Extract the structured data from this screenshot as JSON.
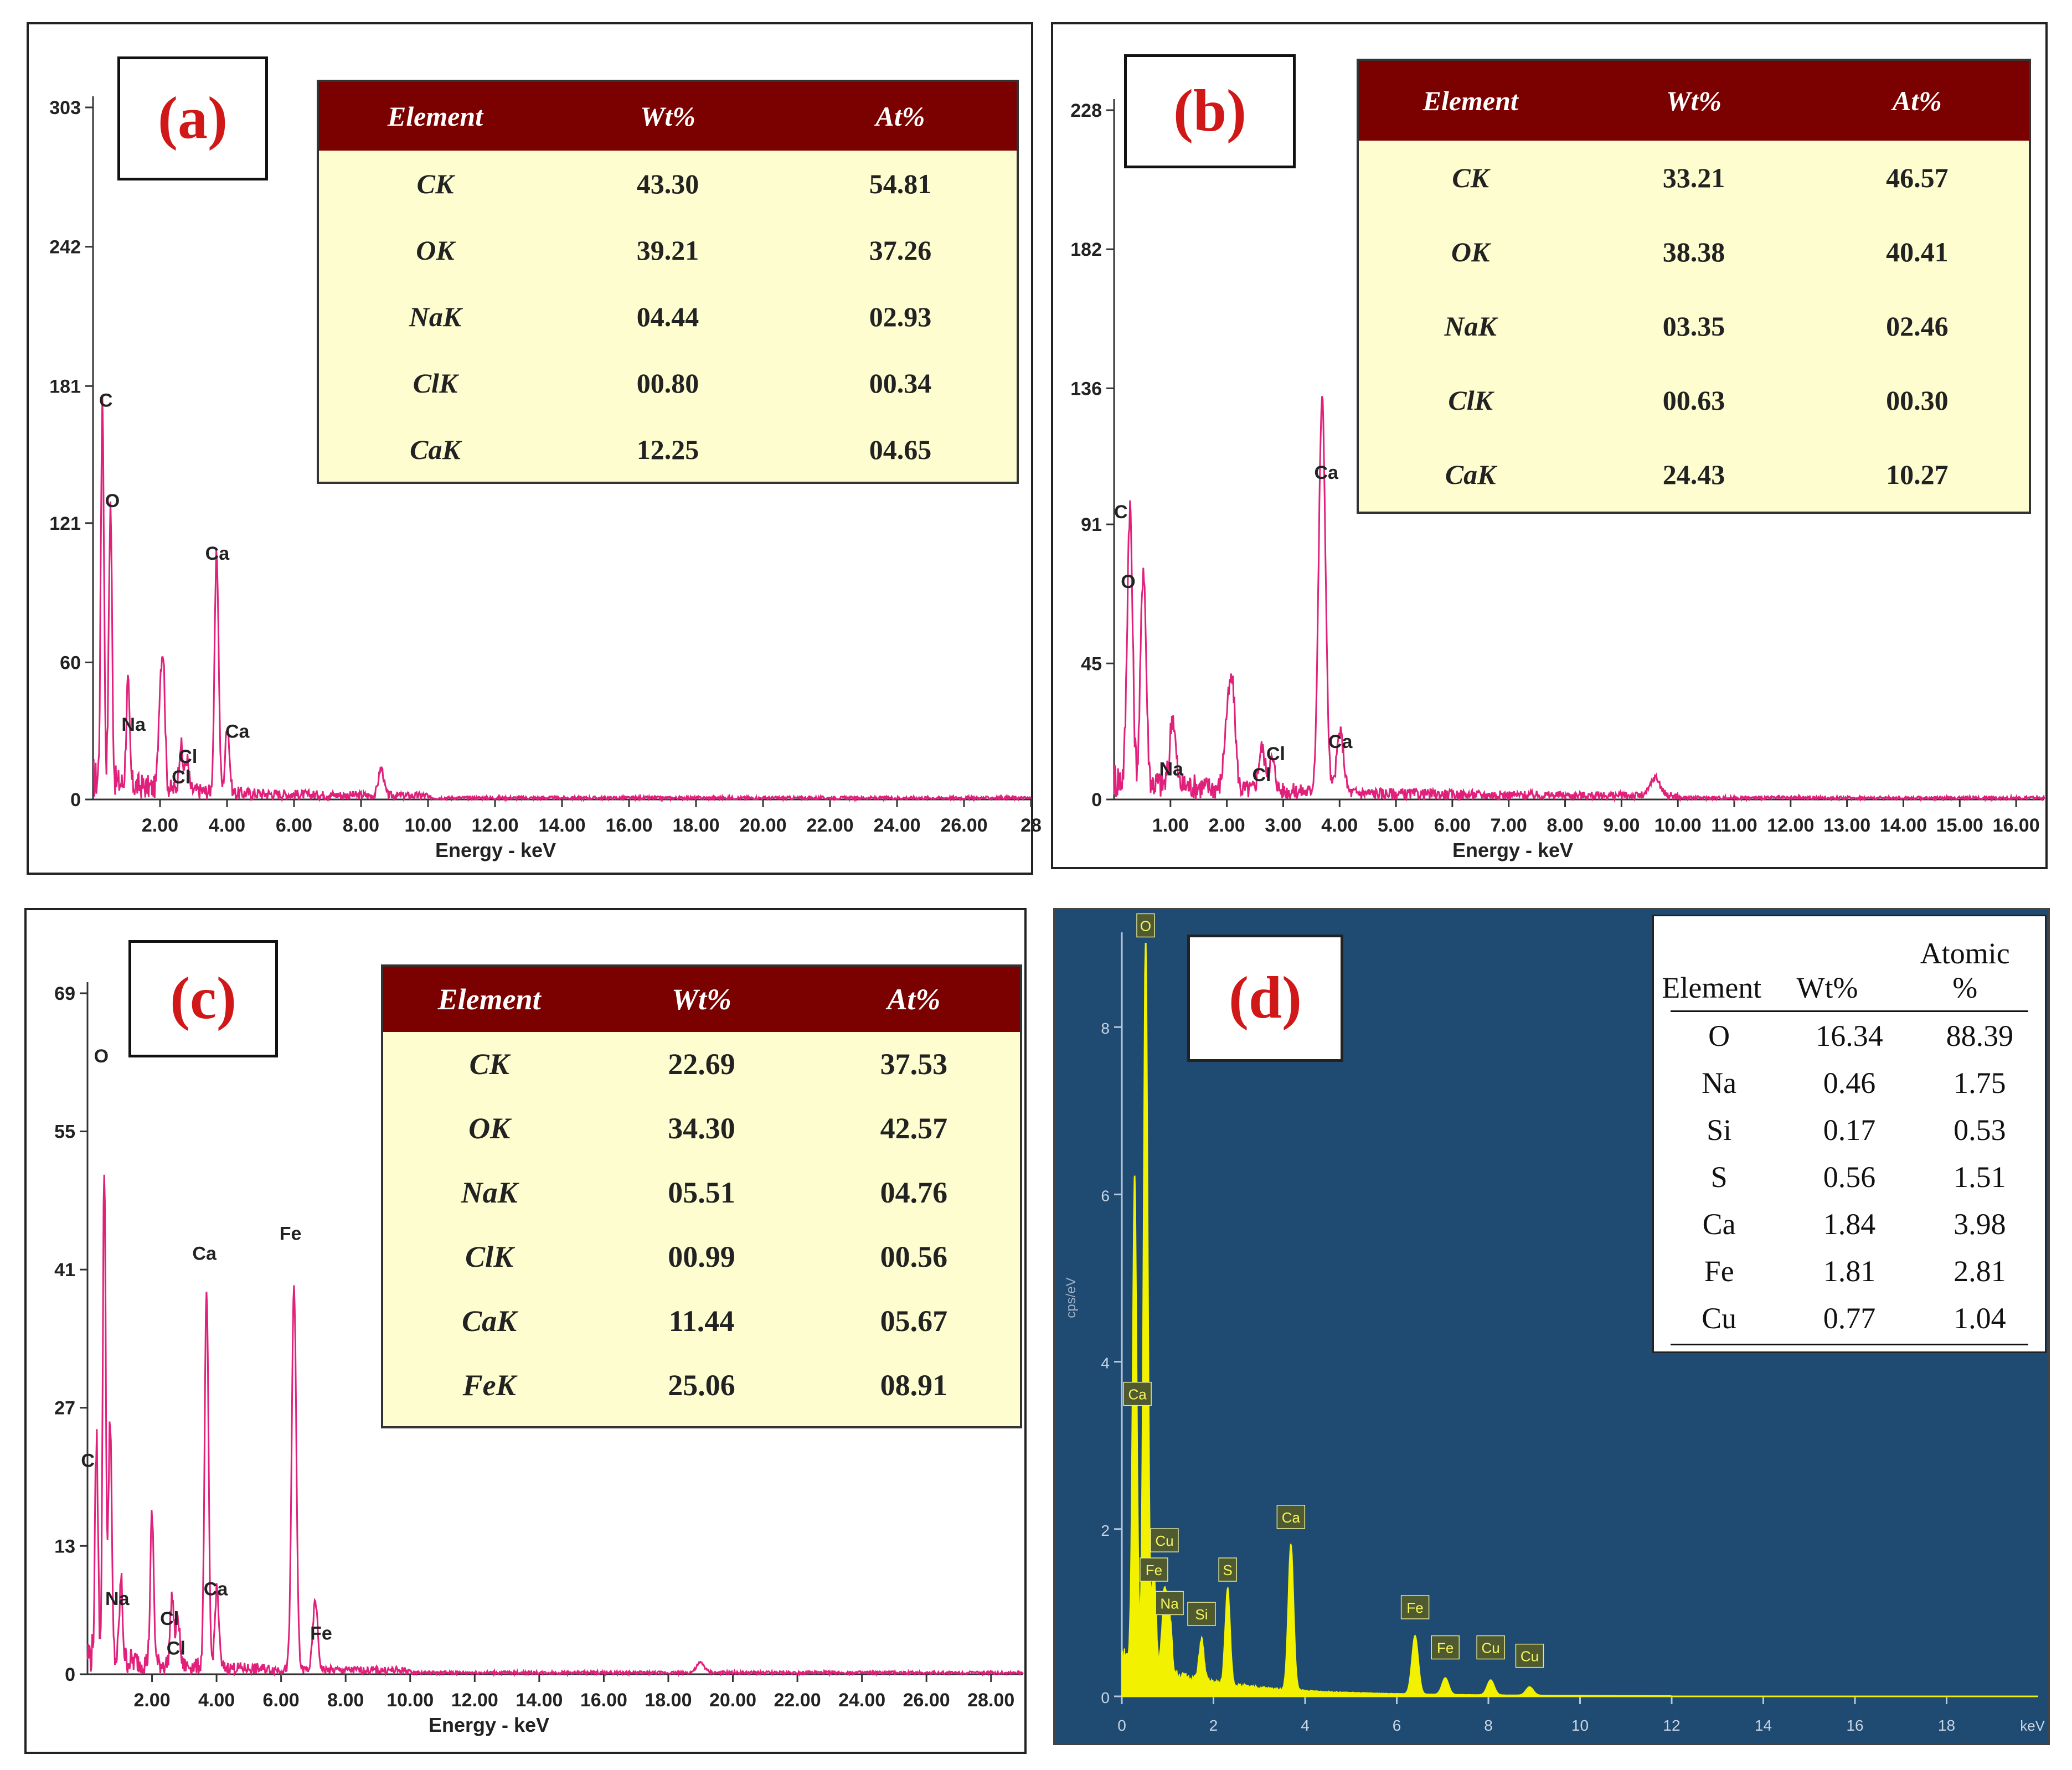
{
  "panels": {
    "a": {
      "label": "(a)",
      "table": {
        "headers": [
          "Element",
          "Wt%",
          "At%"
        ],
        "rows": [
          [
            "CK",
            "43.30",
            "54.81"
          ],
          [
            "OK",
            "39.21",
            "37.26"
          ],
          [
            "NaK",
            "04.44",
            "02.93"
          ],
          [
            "ClK",
            "00.80",
            "00.34"
          ],
          [
            "CaK",
            "12.25",
            "04.65"
          ]
        ]
      }
    },
    "b": {
      "label": "(b)",
      "table": {
        "headers": [
          "Element",
          "Wt%",
          "At%"
        ],
        "rows": [
          [
            "CK",
            "33.21",
            "46.57"
          ],
          [
            "OK",
            "38.38",
            "40.41"
          ],
          [
            "NaK",
            "03.35",
            "02.46"
          ],
          [
            "ClK",
            "00.63",
            "00.30"
          ],
          [
            "CaK",
            "24.43",
            "10.27"
          ]
        ]
      }
    },
    "c": {
      "label": "(c)",
      "table": {
        "headers": [
          "Element",
          "Wt%",
          "At%"
        ],
        "rows": [
          [
            "CK",
            "22.69",
            "37.53"
          ],
          [
            "OK",
            "34.30",
            "42.57"
          ],
          [
            "NaK",
            "05.51",
            "04.76"
          ],
          [
            "ClK",
            "00.99",
            "00.56"
          ],
          [
            "CaK",
            "11.44",
            "05.67"
          ],
          [
            "FeK",
            "25.06",
            "08.91"
          ]
        ]
      }
    },
    "d": {
      "label": "(d)",
      "table": {
        "headers": [
          "Element",
          "Wt%",
          "Atomic %"
        ],
        "rows": [
          [
            "O",
            "16.34",
            "88.39"
          ],
          [
            "Na",
            "0.46",
            "1.75"
          ],
          [
            "Si",
            "0.17",
            "0.53"
          ],
          [
            "S",
            "0.56",
            "1.51"
          ],
          [
            "Ca",
            "1.84",
            "3.98"
          ],
          [
            "Fe",
            "1.81",
            "2.81"
          ],
          [
            "Cu",
            "0.77",
            "1.04"
          ]
        ]
      }
    }
  },
  "chart_data": [
    {
      "id": "a",
      "type": "line",
      "xlabel": "Energy - keV",
      "ylabel": "",
      "xlim": [
        0,
        28
      ],
      "ylim": [
        0,
        303
      ],
      "yticks": [
        0,
        60,
        121,
        181,
        242,
        303
      ],
      "xticks": [
        2,
        4,
        6,
        8,
        10,
        12,
        14,
        16,
        18,
        20,
        22,
        24,
        26,
        28
      ],
      "xtick_labels": [
        "2.00",
        "4.00",
        "6.00",
        "8.00",
        "10.00",
        "12.00",
        "14.00",
        "16.00",
        "18.00",
        "20.00",
        "22.00",
        "24.00",
        "26.00",
        "28"
      ],
      "color": "#e0207a",
      "peaks": [
        [
          0.28,
          168
        ],
        [
          0.52,
          122
        ],
        [
          1.04,
          44
        ],
        [
          2.0,
          38
        ],
        [
          2.1,
          52
        ],
        [
          2.62,
          20
        ],
        [
          2.8,
          14
        ],
        [
          3.69,
          104
        ],
        [
          4.01,
          30
        ],
        [
          8.6,
          12
        ]
      ],
      "annotations": [
        {
          "text": "C",
          "x": 0.18,
          "y": 172
        },
        {
          "text": "O",
          "x": 0.36,
          "y": 128
        },
        {
          "text": "Na",
          "x": 0.85,
          "y": 30
        },
        {
          "text": "Cl",
          "x": 2.55,
          "y": 16
        },
        {
          "text": "Cl",
          "x": 2.35,
          "y": 7
        },
        {
          "text": "Ca",
          "x": 3.35,
          "y": 105
        },
        {
          "text": "Ca",
          "x": 3.95,
          "y": 27
        }
      ]
    },
    {
      "id": "b",
      "type": "line",
      "xlabel": "Energy - keV",
      "ylabel": "",
      "xlim": [
        0,
        16.5
      ],
      "ylim": [
        0,
        228
      ],
      "yticks": [
        0,
        45,
        91,
        136,
        182,
        228
      ],
      "xticks": [
        1,
        2,
        3,
        4,
        5,
        6,
        7,
        8,
        9,
        10,
        11,
        12,
        13,
        14,
        15,
        16
      ],
      "xtick_labels": [
        "1.00",
        "2.00",
        "3.00",
        "4.00",
        "5.00",
        "6.00",
        "7.00",
        "8.00",
        "9.00",
        "10.00",
        "11.00",
        "12.00",
        "13.00",
        "14.00",
        "15.00",
        "16.00"
      ],
      "color": "#e0207a",
      "peaks": [
        [
          0.28,
          91
        ],
        [
          0.52,
          72
        ],
        [
          1.04,
          23
        ],
        [
          2.0,
          20
        ],
        [
          2.1,
          32
        ],
        [
          2.62,
          14
        ],
        [
          2.8,
          10
        ],
        [
          3.69,
          130
        ],
        [
          4.01,
          20
        ],
        [
          9.6,
          6
        ]
      ],
      "annotations": [
        {
          "text": "C",
          "x": 0.0,
          "y": 93
        },
        {
          "text": "O",
          "x": 0.12,
          "y": 70
        },
        {
          "text": "Na",
          "x": 0.8,
          "y": 8
        },
        {
          "text": "Cl",
          "x": 2.7,
          "y": 13
        },
        {
          "text": "Cl",
          "x": 2.45,
          "y": 6
        },
        {
          "text": "Ca",
          "x": 3.55,
          "y": 106
        },
        {
          "text": "Ca",
          "x": 3.8,
          "y": 17
        }
      ]
    },
    {
      "id": "c",
      "type": "line",
      "xlabel": "Energy - keV",
      "ylabel": "",
      "xlim": [
        0,
        29
      ],
      "ylim": [
        0,
        69
      ],
      "yticks": [
        0,
        13,
        27,
        41,
        55,
        69
      ],
      "xticks": [
        2,
        4,
        6,
        8,
        10,
        12,
        14,
        16,
        18,
        20,
        22,
        24,
        26,
        28
      ],
      "xtick_labels": [
        "2.00",
        "4.00",
        "6.00",
        "8.00",
        "10.00",
        "12.00",
        "14.00",
        "16.00",
        "18.00",
        "20.00",
        "22.00",
        "24.00",
        "26.00",
        "28.00"
      ],
      "color": "#e0207a",
      "peaks": [
        [
          0.28,
          22
        ],
        [
          0.52,
          50
        ],
        [
          0.7,
          25
        ],
        [
          1.04,
          8
        ],
        [
          2.0,
          15
        ],
        [
          2.62,
          7
        ],
        [
          2.8,
          5
        ],
        [
          3.69,
          38
        ],
        [
          4.01,
          8
        ],
        [
          6.4,
          39
        ],
        [
          7.06,
          7
        ],
        [
          19.0,
          1
        ]
      ],
      "annotations": [
        {
          "text": "O",
          "x": 0.2,
          "y": 62
        },
        {
          "text": "C",
          "x": -0.2,
          "y": 21
        },
        {
          "text": "Na",
          "x": 0.55,
          "y": 7
        },
        {
          "text": "Cl",
          "x": 2.25,
          "y": 5
        },
        {
          "text": "Cl",
          "x": 2.45,
          "y": 2
        },
        {
          "text": "Ca",
          "x": 3.25,
          "y": 42
        },
        {
          "text": "Ca",
          "x": 3.6,
          "y": 8
        },
        {
          "text": "Fe",
          "x": 5.95,
          "y": 44
        },
        {
          "text": "Fe",
          "x": 6.9,
          "y": 3.5
        }
      ]
    },
    {
      "id": "d",
      "type": "area",
      "xlabel": "keV",
      "ylabel": "cps/eV",
      "xlim": [
        0,
        20
      ],
      "ylim": [
        0,
        9
      ],
      "yticks": [
        0,
        2,
        4,
        6,
        8
      ],
      "xticks": [
        0,
        2,
        4,
        6,
        8,
        10,
        12,
        14,
        16,
        18
      ],
      "xtick_labels": [
        "0",
        "2",
        "4",
        "6",
        "8",
        "10",
        "12",
        "14",
        "16",
        "18"
      ],
      "color": "#f2f200",
      "peaks": [
        [
          0.28,
          5.9
        ],
        [
          0.52,
          9.0
        ],
        [
          0.7,
          1.2
        ],
        [
          0.93,
          1.0
        ],
        [
          1.04,
          0.7
        ],
        [
          1.74,
          0.5
        ],
        [
          2.31,
          1.15
        ],
        [
          3.69,
          1.75
        ],
        [
          6.4,
          0.7
        ],
        [
          7.06,
          0.2
        ],
        [
          8.05,
          0.18
        ],
        [
          8.9,
          0.1
        ]
      ],
      "annotations": [
        {
          "text": "O",
          "x": 0.52,
          "y": 9.05
        },
        {
          "text": "Ca",
          "x": 0.34,
          "y": 3.45
        },
        {
          "text": "Cu",
          "x": 0.93,
          "y": 1.7
        },
        {
          "text": "Fe",
          "x": 0.7,
          "y": 1.35
        },
        {
          "text": "Na",
          "x": 1.04,
          "y": 0.95
        },
        {
          "text": "Si",
          "x": 1.74,
          "y": 0.82
        },
        {
          "text": "S",
          "x": 2.31,
          "y": 1.35
        },
        {
          "text": "Ca",
          "x": 3.69,
          "y": 1.98
        },
        {
          "text": "Fe",
          "x": 6.4,
          "y": 0.9
        },
        {
          "text": "Fe",
          "x": 7.06,
          "y": 0.42
        },
        {
          "text": "Cu",
          "x": 8.05,
          "y": 0.42
        },
        {
          "text": "Cu",
          "x": 8.9,
          "y": 0.32
        }
      ]
    }
  ]
}
